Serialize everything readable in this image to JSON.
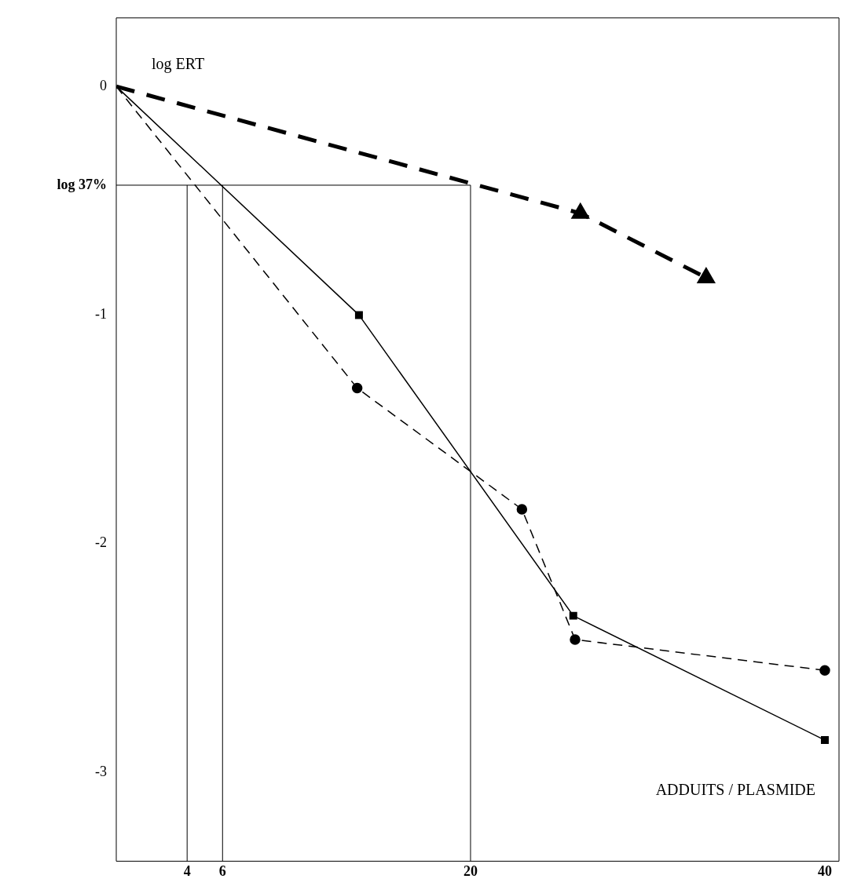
{
  "chart_data": {
    "type": "line",
    "xlabel": "ADDUITS / PLASMIDE",
    "ylabel": "log ERT",
    "xlim": [
      0,
      40.8
    ],
    "ylim": [
      -3.39,
      0.3
    ],
    "xticks": [
      4,
      6,
      20,
      40
    ],
    "yticks": [
      0,
      {
        "value": -0.432,
        "label": "log 37%"
      },
      -1,
      -2,
      -3
    ],
    "series": [
      {
        "color": "#000000",
        "marker": "triangle",
        "line_style": "dashed",
        "x": [
          0,
          26.2,
          33.3
        ],
        "values": [
          0,
          -0.555,
          -0.837
        ]
      },
      {
        "color": "#000000",
        "marker": "square",
        "line_style": "solid",
        "x": [
          0,
          13.7,
          25.8,
          40
        ],
        "values": [
          0,
          -1.0,
          -2.316,
          -2.86
        ]
      },
      {
        "color": "#000000",
        "marker": "circle",
        "line_style": "dashed",
        "x": [
          0,
          13.6,
          22.9,
          25.9,
          40
        ],
        "values": [
          0,
          -1.32,
          -1.85,
          -2.42,
          -2.555
        ]
      }
    ],
    "ref_lines": [
      {
        "axis": "y",
        "value": -0.432
      },
      {
        "axis": "x",
        "value": 4
      },
      {
        "axis": "x",
        "value": 6
      },
      {
        "axis": "x",
        "value": 20
      }
    ],
    "grid": false,
    "legend": false
  }
}
